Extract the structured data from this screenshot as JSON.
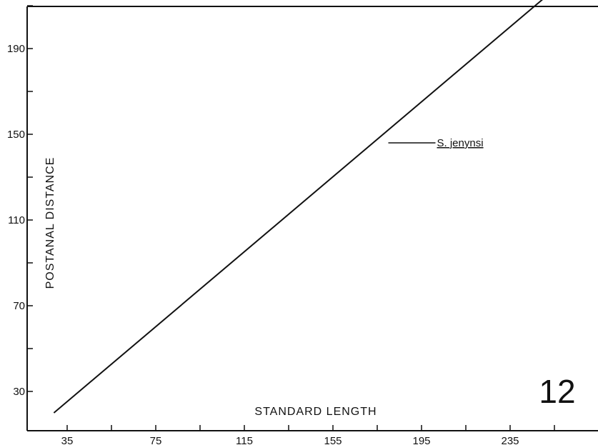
{
  "chart_data": {
    "type": "line",
    "xlabel": "STANDARD LENGTH",
    "ylabel": "POSTANAL DISTANCE",
    "xlim": [
      15,
      270
    ],
    "ylim": [
      13,
      215
    ],
    "x_ticks": [
      35,
      75,
      115,
      155,
      195,
      235
    ],
    "x_minor_ticks": [
      55,
      95,
      135,
      175,
      215,
      255
    ],
    "y_ticks": [
      30,
      70,
      110,
      150,
      190
    ],
    "y_minor_ticks": [
      50,
      90,
      130,
      170,
      210
    ],
    "series": [
      {
        "name": "S. jenynsi",
        "x": [
          29,
          252
        ],
        "y": [
          20,
          215
        ]
      }
    ],
    "annotations": [
      {
        "text": "S. jenynsi",
        "x": 180,
        "y": 146
      }
    ],
    "figure_number": "12",
    "grid": false,
    "legend": "none"
  }
}
